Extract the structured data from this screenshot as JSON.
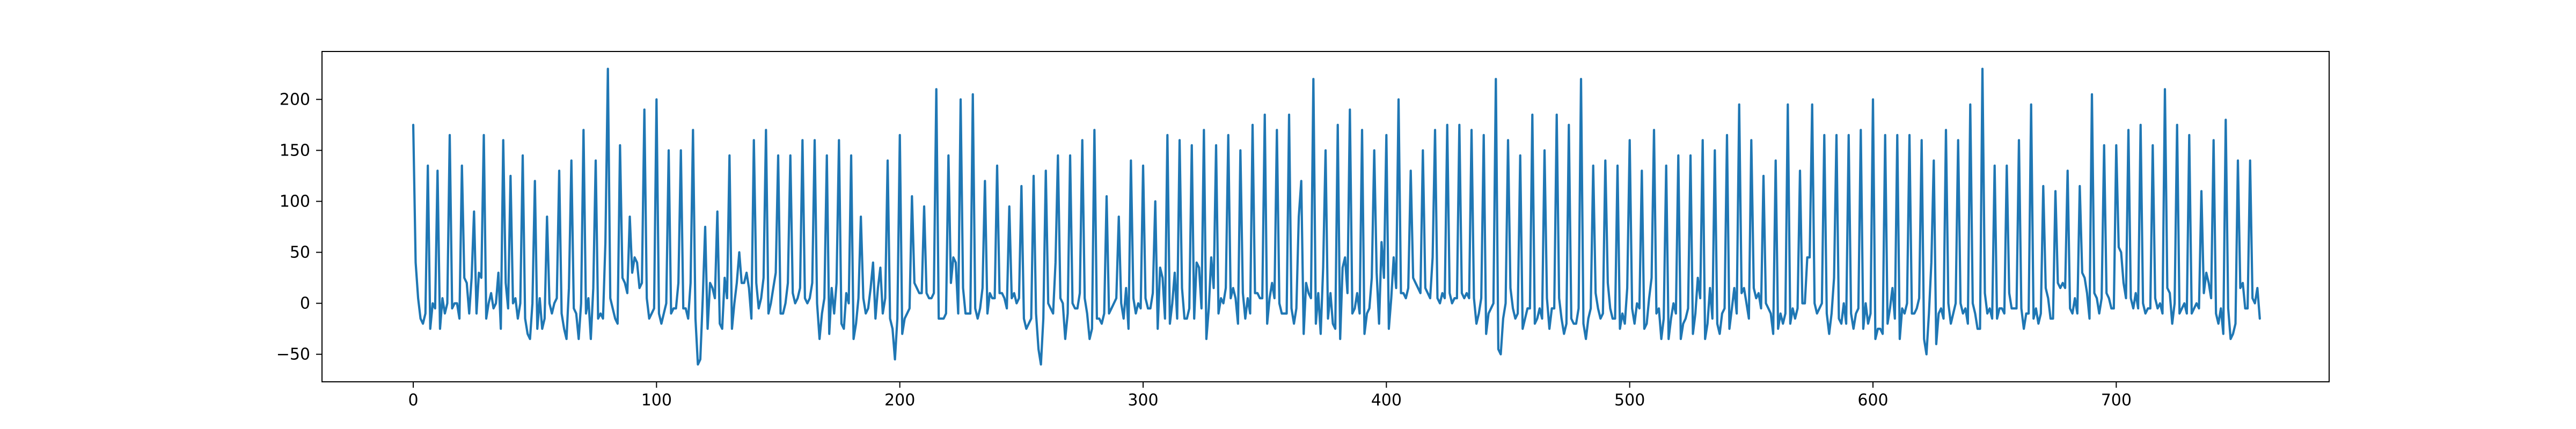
{
  "chart_data": {
    "type": "line",
    "title": "",
    "xlabel": "",
    "ylabel": "",
    "xlim": [
      -37.5,
      787.5
    ],
    "ylim": [
      -77,
      247
    ],
    "x_ticks": [
      0,
      100,
      200,
      300,
      400,
      500,
      600,
      700
    ],
    "y_ticks": [
      -50,
      0,
      50,
      100,
      150,
      200
    ],
    "grid": false,
    "legend": null,
    "series": [
      {
        "color": "#1f77b4",
        "x_start": 0,
        "x_step": 1,
        "values": [
          175,
          40,
          5,
          -15,
          -20,
          -10,
          135,
          -25,
          0,
          -5,
          130,
          -25,
          5,
          -10,
          0,
          165,
          -5,
          0,
          0,
          -15,
          135,
          25,
          20,
          -10,
          25,
          90,
          -10,
          30,
          25,
          165,
          -15,
          0,
          10,
          -5,
          0,
          30,
          -25,
          160,
          20,
          -5,
          125,
          0,
          5,
          -15,
          0,
          145,
          -15,
          -30,
          -35,
          0,
          120,
          -25,
          5,
          -25,
          -15,
          85,
          0,
          -10,
          0,
          5,
          130,
          -10,
          -25,
          -35,
          15,
          140,
          -5,
          -10,
          -35,
          0,
          170,
          -10,
          5,
          -35,
          15,
          140,
          -15,
          -10,
          -15,
          60,
          230,
          5,
          -5,
          -15,
          -20,
          155,
          25,
          20,
          10,
          85,
          30,
          45,
          40,
          15,
          20,
          190,
          5,
          -15,
          -10,
          -5,
          200,
          -10,
          -20,
          -10,
          0,
          150,
          -10,
          -5,
          -5,
          20,
          150,
          -5,
          -5,
          -15,
          20,
          170,
          -15,
          -60,
          -55,
          5,
          75,
          -25,
          20,
          15,
          5,
          90,
          -20,
          -25,
          25,
          5,
          145,
          -25,
          0,
          20,
          50,
          20,
          20,
          30,
          15,
          -15,
          160,
          20,
          -5,
          5,
          25,
          170,
          -10,
          0,
          15,
          30,
          145,
          -10,
          -10,
          0,
          20,
          145,
          10,
          0,
          5,
          15,
          160,
          5,
          0,
          5,
          20,
          160,
          0,
          -35,
          -10,
          5,
          145,
          -30,
          15,
          -10,
          20,
          160,
          -20,
          -25,
          10,
          0,
          145,
          -35,
          -20,
          5,
          85,
          5,
          -10,
          -5,
          15,
          40,
          -15,
          15,
          35,
          -10,
          5,
          140,
          -15,
          -25,
          -55,
          -15,
          165,
          -30,
          -15,
          -10,
          -5,
          105,
          20,
          15,
          10,
          10,
          95,
          10,
          5,
          5,
          10,
          210,
          -15,
          -15,
          -15,
          -10,
          145,
          20,
          45,
          40,
          -10,
          200,
          15,
          -10,
          -10,
          -10,
          205,
          -5,
          -15,
          -5,
          15,
          120,
          -10,
          10,
          5,
          5,
          135,
          10,
          10,
          5,
          -5,
          95,
          5,
          10,
          0,
          5,
          115,
          -15,
          -25,
          -20,
          -15,
          125,
          -10,
          -45,
          -60,
          -15,
          130,
          0,
          -5,
          -10,
          40,
          145,
          5,
          0,
          -35,
          -10,
          145,
          0,
          -5,
          -5,
          10,
          160,
          5,
          -10,
          -35,
          -25,
          170,
          -15,
          -15,
          -20,
          -10,
          105,
          -10,
          -5,
          0,
          5,
          85,
          0,
          -15,
          15,
          -25,
          140,
          5,
          -10,
          0,
          -5,
          135,
          5,
          -5,
          -5,
          10,
          100,
          -25,
          35,
          25,
          -15,
          165,
          -20,
          0,
          30,
          -15,
          160,
          15,
          -15,
          -15,
          -5,
          155,
          -15,
          40,
          35,
          -5,
          170,
          -35,
          -5,
          45,
          15,
          155,
          -10,
          5,
          0,
          15,
          165,
          5,
          15,
          5,
          -20,
          150,
          10,
          -15,
          5,
          -10,
          175,
          10,
          10,
          5,
          5,
          185,
          -20,
          5,
          20,
          5,
          170,
          0,
          -10,
          -10,
          -10,
          185,
          -5,
          -20,
          -5,
          85,
          120,
          -30,
          20,
          10,
          5,
          220,
          -20,
          10,
          -30,
          35,
          150,
          -15,
          10,
          -20,
          -25,
          175,
          -35,
          35,
          45,
          10,
          190,
          -10,
          -5,
          10,
          -10,
          170,
          -30,
          -10,
          -5,
          25,
          150,
          30,
          -20,
          60,
          25,
          165,
          -25,
          5,
          45,
          15,
          200,
          10,
          10,
          5,
          15,
          130,
          25,
          20,
          15,
          10,
          150,
          15,
          10,
          5,
          45,
          170,
          5,
          0,
          10,
          5,
          175,
          10,
          0,
          5,
          5,
          175,
          10,
          5,
          10,
          5,
          170,
          5,
          -20,
          -10,
          5,
          165,
          -30,
          -10,
          -5,
          0,
          220,
          -45,
          -50,
          -15,
          0,
          160,
          15,
          -5,
          -15,
          -10,
          145,
          -25,
          -15,
          -5,
          -5,
          185,
          -20,
          -15,
          -5,
          -15,
          150,
          5,
          -25,
          -5,
          -5,
          185,
          5,
          -15,
          -30,
          -20,
          175,
          -15,
          -20,
          -20,
          -5,
          220,
          -20,
          -35,
          -15,
          -5,
          135,
          10,
          -5,
          -15,
          -10,
          140,
          20,
          -5,
          -15,
          -15,
          135,
          -25,
          -10,
          -20,
          15,
          160,
          -5,
          -20,
          0,
          -5,
          130,
          -25,
          -20,
          5,
          25,
          170,
          -10,
          -5,
          -35,
          -15,
          135,
          -35,
          -15,
          0,
          -10,
          145,
          -35,
          -20,
          -15,
          -5,
          145,
          -30,
          -10,
          25,
          5,
          160,
          -35,
          -20,
          15,
          -15,
          150,
          -20,
          -30,
          -10,
          -5,
          165,
          -25,
          -5,
          15,
          -10,
          195,
          10,
          15,
          0,
          -15,
          160,
          15,
          5,
          10,
          -5,
          125,
          0,
          -5,
          -10,
          -30,
          140,
          -25,
          -10,
          -20,
          -10,
          195,
          -20,
          -5,
          -15,
          -5,
          130,
          0,
          0,
          45,
          45,
          195,
          0,
          -10,
          -5,
          0,
          165,
          -10,
          -30,
          -10,
          25,
          165,
          -15,
          -20,
          0,
          -20,
          165,
          -10,
          -25,
          -10,
          -5,
          170,
          -25,
          0,
          -20,
          -10,
          200,
          -35,
          -25,
          -25,
          -30,
          165,
          -20,
          -5,
          15,
          -15,
          165,
          -35,
          -5,
          -10,
          0,
          165,
          -10,
          -10,
          -5,
          5,
          160,
          -35,
          -50,
          -10,
          40,
          140,
          -40,
          -10,
          -5,
          -15,
          170,
          0,
          -20,
          -10,
          0,
          160,
          0,
          -10,
          -5,
          -20,
          195,
          0,
          -10,
          -25,
          -25,
          230,
          10,
          -10,
          -5,
          -15,
          135,
          -15,
          -5,
          -5,
          -10,
          135,
          10,
          -5,
          -5,
          -5,
          160,
          -5,
          -25,
          -10,
          -10,
          195,
          -15,
          -5,
          -20,
          -10,
          115,
          15,
          5,
          -15,
          -15,
          110,
          20,
          15,
          20,
          15,
          130,
          -5,
          -10,
          5,
          -10,
          115,
          30,
          25,
          10,
          -15,
          205,
          10,
          5,
          -10,
          5,
          155,
          10,
          5,
          -5,
          -5,
          155,
          55,
          50,
          20,
          5,
          170,
          5,
          -5,
          10,
          -5,
          175,
          0,
          -10,
          -5,
          -5,
          155,
          5,
          -5,
          0,
          -10,
          210,
          15,
          10,
          -20,
          0,
          175,
          -10,
          -5,
          0,
          -10,
          165,
          -10,
          -5,
          0,
          -5,
          110,
          10,
          30,
          20,
          5,
          160,
          -10,
          -20,
          -5,
          -30,
          180,
          -5,
          -35,
          -30,
          -20,
          140,
          15,
          20,
          -5,
          -5,
          140,
          5,
          0,
          15,
          -15
        ]
      }
    ]
  }
}
